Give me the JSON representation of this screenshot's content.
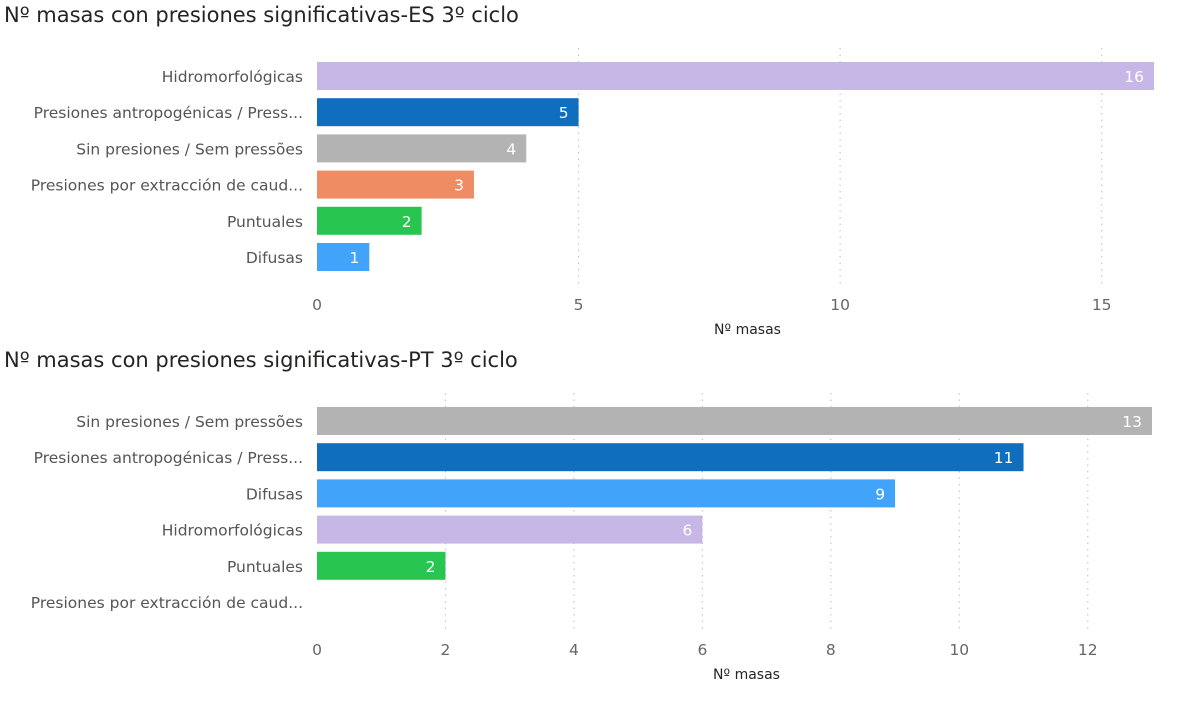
{
  "chart_data": [
    {
      "type": "bar",
      "orientation": "horizontal",
      "title": "Nº masas con presiones significativas-ES 3º ciclo",
      "xlabel": "Nº masas",
      "ylabel": "",
      "xlim": [
        0,
        16
      ],
      "xticks": [
        0,
        5,
        10,
        15
      ],
      "grid": true,
      "categories": [
        "Hidromorfológicas",
        "Presiones antropogénicas / Press...",
        "Sin presiones / Sem pressões",
        "Presiones por extracción de caud...",
        "Puntuales",
        "Difusas"
      ],
      "values": [
        16,
        5,
        4,
        3,
        2,
        1
      ],
      "colors": [
        "#c7b7e6",
        "#106ebe",
        "#b3b3b3",
        "#ee8c64",
        "#28c650",
        "#41a3fa"
      ]
    },
    {
      "type": "bar",
      "orientation": "horizontal",
      "title": "Nº masas con presiones significativas-PT 3º ciclo",
      "xlabel": "Nº masas",
      "ylabel": "",
      "xlim": [
        0,
        13
      ],
      "xticks": [
        0,
        2,
        4,
        6,
        8,
        10,
        12
      ],
      "grid": true,
      "categories": [
        "Sin presiones / Sem pressões",
        "Presiones antropogénicas / Press...",
        "Difusas",
        "Hidromorfológicas",
        "Puntuales",
        "Presiones por extracción de caud..."
      ],
      "values": [
        13,
        11,
        9,
        6,
        2,
        null
      ],
      "colors": [
        "#b3b3b3",
        "#106ebe",
        "#41a3fa",
        "#c7b7e6",
        "#28c650",
        "#ee8c64"
      ]
    }
  ]
}
